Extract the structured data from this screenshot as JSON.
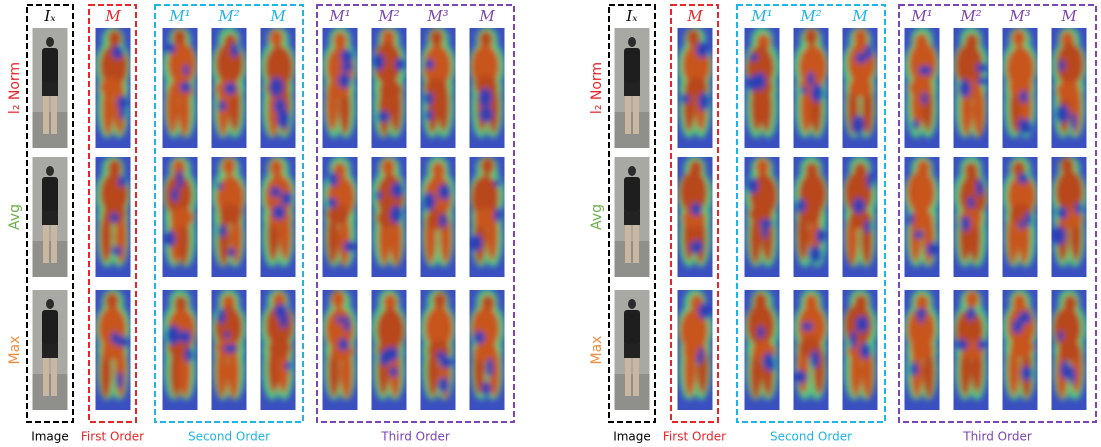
{
  "panels": [
    {
      "row_labels": [
        "l₂ Norm",
        "Avg",
        "Max"
      ],
      "headers": {
        "image": [
          "Iₓ"
        ],
        "first_order": [
          "M"
        ],
        "second_order": [
          "M¹",
          "M²",
          "M"
        ],
        "third_order": [
          "M¹",
          "M²",
          "M³",
          "M"
        ]
      },
      "group_labels": {
        "image": "Image",
        "first_order": "First Order",
        "second_order": "Second Order",
        "third_order": "Third Order"
      }
    },
    {
      "row_labels": [
        "l₂ Norm",
        "Avg",
        "Max"
      ],
      "headers": {
        "image": [
          "Iₓ"
        ],
        "first_order": [
          "M"
        ],
        "second_order": [
          "M¹",
          "M²",
          "M"
        ],
        "third_order": [
          "M¹",
          "M²",
          "M³",
          "M"
        ]
      },
      "group_labels": {
        "image": "Image",
        "first_order": "First Order",
        "second_order": "Second Order",
        "third_order": "Third Order"
      }
    }
  ]
}
